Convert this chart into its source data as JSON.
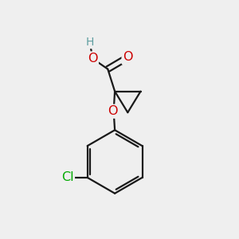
{
  "background_color": "#efefef",
  "bond_color": "#1a1a1a",
  "bond_width": 1.6,
  "atom_colors": {
    "O": "#cc0000",
    "Cl": "#00aa00",
    "H": "#5f9ea0",
    "C": "#1a1a1a"
  },
  "font_size_atoms": 11.5,
  "font_size_H": 10,
  "font_size_Cl": 11.5
}
